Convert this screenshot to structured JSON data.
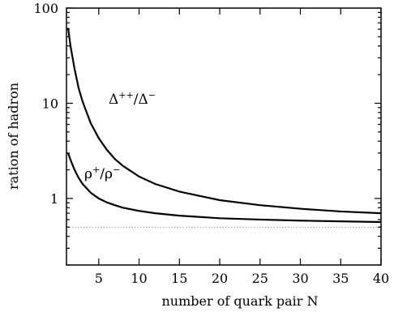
{
  "chart_data": {
    "type": "line",
    "xlabel": "number of quark pair N",
    "ylabel": "ration of hadron",
    "xlim": [
      1,
      40
    ],
    "ylim": [
      0.2,
      100
    ],
    "yscale": "log",
    "grid": false,
    "x_ticks": [
      5,
      10,
      15,
      20,
      25,
      30,
      35,
      40
    ],
    "x_tick_labels": [
      "5",
      "10",
      "15",
      "20",
      "25",
      "30",
      "35",
      "40"
    ],
    "y_ticks": [
      1,
      10,
      100
    ],
    "y_tick_labels": [
      "1",
      "10",
      "100"
    ],
    "reference_line": {
      "y": 0.5,
      "style": "dotted"
    },
    "series": [
      {
        "label_base": "Δ",
        "label_sup1": "++",
        "label_sep": "/",
        "label_sup2": "−",
        "x": [
          1.2,
          1.5,
          2,
          2.5,
          3,
          4,
          5,
          6,
          7,
          8,
          10,
          12,
          15,
          20,
          25,
          30,
          35,
          40
        ],
        "values": [
          62,
          40,
          23,
          14.5,
          10.4,
          6.2,
          4.3,
          3.25,
          2.6,
          2.2,
          1.7,
          1.42,
          1.18,
          0.96,
          0.85,
          0.78,
          0.73,
          0.7
        ]
      },
      {
        "label_base": "ρ",
        "label_sup1": "+",
        "label_sep": "/",
        "label_sup2": "−",
        "x": [
          1.2,
          1.5,
          2,
          2.5,
          3,
          4,
          5,
          6,
          7,
          8,
          10,
          12,
          15,
          20,
          25,
          30,
          35,
          40
        ],
        "values": [
          3.0,
          2.55,
          2.0,
          1.65,
          1.42,
          1.15,
          1.0,
          0.91,
          0.85,
          0.8,
          0.74,
          0.7,
          0.66,
          0.62,
          0.6,
          0.585,
          0.575,
          0.565
        ]
      }
    ]
  }
}
